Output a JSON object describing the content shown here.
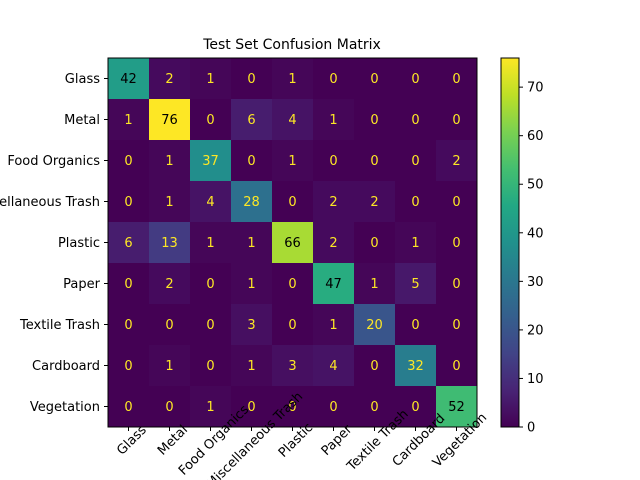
{
  "chart_data": {
    "type": "heatmap",
    "title": "Test Set Confusion Matrix",
    "xlabel": "",
    "ylabel": "",
    "labels": [
      "Glass",
      "Metal",
      "Food Organics",
      "Miscellaneous Trash",
      "Plastic",
      "Paper",
      "Textile Trash",
      "Cardboard",
      "Vegetation"
    ],
    "matrix": [
      [
        42,
        2,
        1,
        0,
        1,
        0,
        0,
        0,
        0
      ],
      [
        1,
        76,
        0,
        6,
        4,
        1,
        0,
        0,
        0
      ],
      [
        0,
        1,
        37,
        0,
        1,
        0,
        0,
        0,
        2
      ],
      [
        0,
        1,
        4,
        28,
        0,
        2,
        2,
        0,
        0
      ],
      [
        6,
        13,
        1,
        1,
        66,
        2,
        0,
        1,
        0
      ],
      [
        0,
        2,
        0,
        1,
        0,
        47,
        1,
        5,
        0
      ],
      [
        0,
        0,
        0,
        3,
        0,
        1,
        20,
        0,
        0
      ],
      [
        0,
        1,
        0,
        1,
        3,
        4,
        0,
        32,
        0
      ],
      [
        0,
        0,
        1,
        0,
        0,
        0,
        0,
        0,
        52
      ]
    ],
    "colormap": "viridis",
    "color_range": [
      0,
      76
    ],
    "colorbar_ticks": [
      0,
      10,
      20,
      30,
      40,
      50,
      60,
      70
    ],
    "x_tick_rotation_deg": 45,
    "grid": false
  }
}
